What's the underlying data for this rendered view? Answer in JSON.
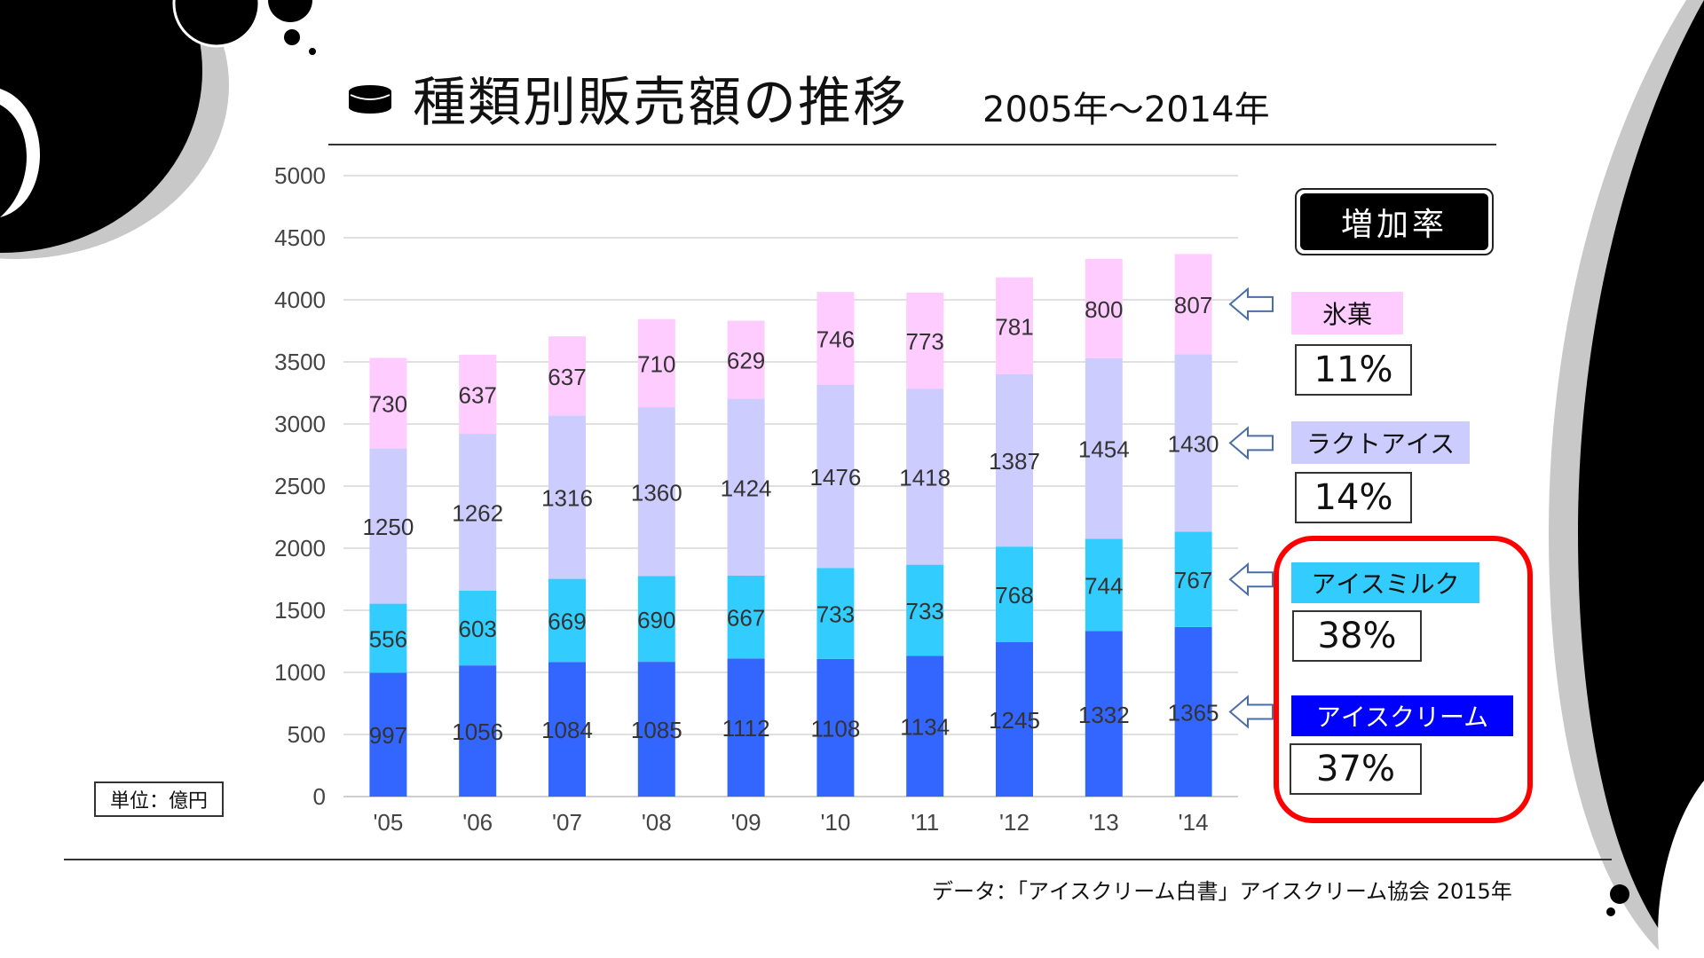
{
  "title": "種類別販売額の推移",
  "subtitle": "2005年〜2014年",
  "unit_label": "単位：億円",
  "source": "データ：「アイスクリーム白書」アイスクリーム協会 2015年",
  "growth_panel": {
    "header": "増加率",
    "items": [
      {
        "label": "氷菓",
        "rate": "11%"
      },
      {
        "label": "ラクトアイス",
        "rate": "14%"
      },
      {
        "label": "アイスミルク",
        "rate": "38%"
      },
      {
        "label": "アイスクリーム",
        "rate": "37%"
      }
    ]
  },
  "colors": {
    "アイスクリーム": "#3366ff",
    "アイスミルク": "#33ccff",
    "ラクトアイス": "#ccccff",
    "氷菓": "#ffccff",
    "highlight": "#ff0000"
  },
  "chart_data": {
    "type": "bar",
    "stacked": true,
    "categories": [
      "'05",
      "'06",
      "'07",
      "'08",
      "'09",
      "'10",
      "'11",
      "'12",
      "'13",
      "'14"
    ],
    "series": [
      {
        "name": "アイスクリーム",
        "values": [
          997,
          1056,
          1084,
          1085,
          1112,
          1108,
          1134,
          1245,
          1332,
          1365
        ]
      },
      {
        "name": "アイスミルク",
        "values": [
          556,
          603,
          669,
          690,
          667,
          733,
          733,
          768,
          744,
          767
        ]
      },
      {
        "name": "ラクトアイス",
        "values": [
          1250,
          1262,
          1316,
          1360,
          1424,
          1476,
          1418,
          1387,
          1454,
          1430
        ]
      },
      {
        "name": "氷菓",
        "values": [
          730,
          637,
          637,
          710,
          629,
          746,
          773,
          781,
          800,
          807
        ]
      }
    ],
    "ylim": [
      0,
      5000
    ],
    "yticks": [
      0,
      500,
      1000,
      1500,
      2000,
      2500,
      3000,
      3500,
      4000,
      4500,
      5000
    ],
    "grid": true
  }
}
